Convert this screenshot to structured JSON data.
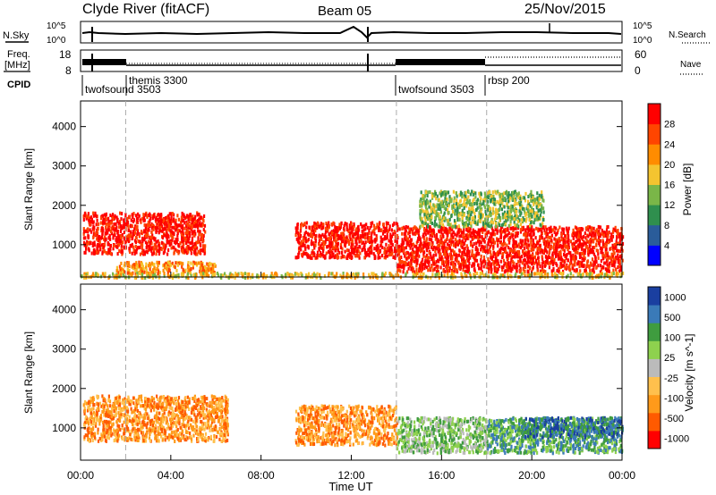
{
  "header": {
    "station": "Clyde River (fitACF)",
    "beam": "Beam 05",
    "date": "25/Nov/2015"
  },
  "noise_panel": {
    "left_label": "N.Sky",
    "right_label": "N.Search",
    "left_ticks": [
      "10^5",
      "10^0"
    ],
    "right_ticks": [
      "10^5",
      "10^0"
    ]
  },
  "freq_panel": {
    "left_label_line1": "Freq.",
    "left_label_line2": "[MHz]",
    "right_label": "Nave",
    "left_ticks": [
      "18",
      "8"
    ],
    "right_ticks": [
      "60",
      "0"
    ]
  },
  "cpid": {
    "label": "CPID",
    "programs": [
      {
        "name": "twofsound 3503",
        "start_hour": 0.0
      },
      {
        "name": "themis 3300",
        "start_hour": 2.0
      },
      {
        "name": "twofsound 3503",
        "start_hour": 14.0
      },
      {
        "name": "rbsp 200",
        "start_hour": 18.0
      }
    ]
  },
  "colors": {
    "power_scale": [
      "#0000ff",
      "#2a5c9a",
      "#2f8f4e",
      "#7ab648",
      "#f4c430",
      "#ff8c00",
      "#ff4500",
      "#ff0000"
    ],
    "velocity_scale": [
      "#ff0000",
      "#ff5a00",
      "#ff9a1a",
      "#ffc04d",
      "#bbbbbb",
      "#8ed14e",
      "#3f9c3f",
      "#3a7ab8",
      "#1a3fa0"
    ]
  },
  "chart_data": [
    {
      "type": "heatmap",
      "title": "Power",
      "colorbar_label": "Power [dB]",
      "colorbar_ticks": [
        "4",
        "8",
        "12",
        "16",
        "20",
        "24",
        "28"
      ],
      "ylabel": "Slant Range [km]",
      "yticks": [
        "1000",
        "2000",
        "3000",
        "4000"
      ],
      "ylim": [
        180,
        4650
      ],
      "xlim": [
        0,
        24
      ],
      "regions": [
        {
          "x": [
            0.1,
            5.5
          ],
          "y": [
            800,
            1850
          ],
          "level": 7
        },
        {
          "x": [
            9.5,
            14.0
          ],
          "y": [
            700,
            1600
          ],
          "level": 7
        },
        {
          "x": [
            14.0,
            24.0
          ],
          "y": [
            350,
            1500
          ],
          "level": 7
        },
        {
          "x": [
            15.0,
            20.5
          ],
          "y": [
            1500,
            2400
          ],
          "level": 3
        },
        {
          "x": [
            1.5,
            6.0
          ],
          "y": [
            300,
            600
          ],
          "level": 5
        },
        {
          "x": [
            0.0,
            24.0
          ],
          "y": [
            200,
            320
          ],
          "level": 4
        }
      ]
    },
    {
      "type": "heatmap",
      "title": "Velocity",
      "colorbar_label": "Velocity [m s^-1]",
      "colorbar_ticks": [
        "1000",
        "500",
        "100",
        "25",
        "-25",
        "-100",
        "-500",
        "-1000"
      ],
      "ylabel": "Slant Range [km]",
      "yticks": [
        "1000",
        "2000",
        "3000",
        "4000"
      ],
      "ylim": [
        180,
        4650
      ],
      "xlim": [
        0,
        24
      ],
      "xlabel": "Time UT",
      "xticks": [
        "00:00",
        "04:00",
        "08:00",
        "12:00",
        "16:00",
        "20:00",
        "00:00"
      ],
      "regions": [
        {
          "x": [
            0.1,
            6.5
          ],
          "y": [
            700,
            1850
          ],
          "level": 2
        },
        {
          "x": [
            9.5,
            14.0
          ],
          "y": [
            600,
            1600
          ],
          "level": 2
        },
        {
          "x": [
            14.0,
            18.0
          ],
          "y": [
            400,
            1300
          ],
          "level": 5
        },
        {
          "x": [
            18.0,
            24.0
          ],
          "y": [
            400,
            1300
          ],
          "level": 6
        },
        {
          "x": [
            19.5,
            24.0
          ],
          "y": [
            800,
            1300
          ],
          "level": 7
        }
      ]
    }
  ]
}
